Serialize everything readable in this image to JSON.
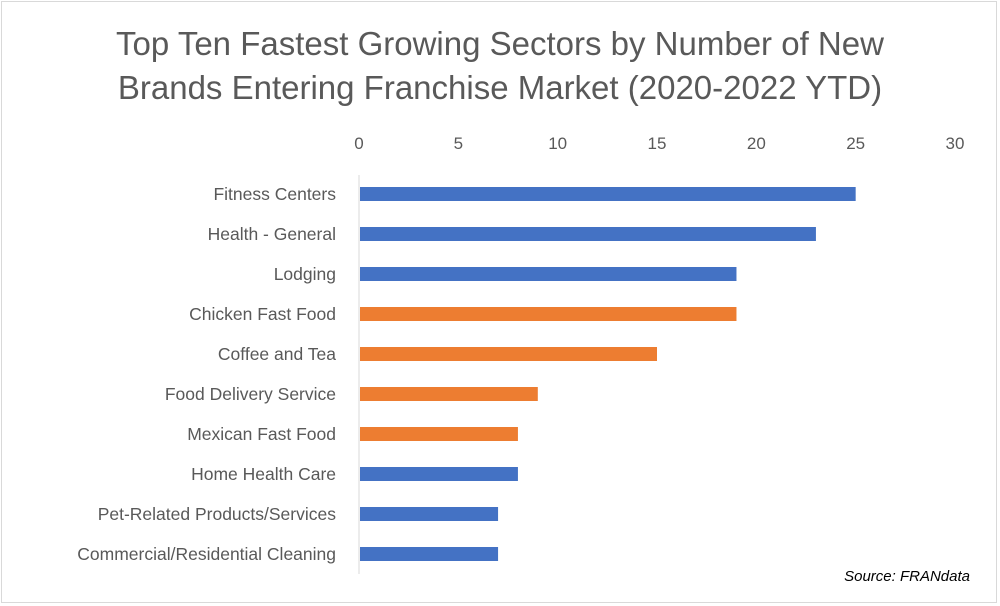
{
  "chart_data": {
    "type": "bar",
    "orientation": "horizontal",
    "title_lines": [
      "Top Ten Fastest Growing Sectors by Number of New",
      "Brands Entering Franchise Market (2020-2022 YTD)"
    ],
    "categories": [
      "Fitness Centers",
      "Health - General",
      "Lodging",
      "Chicken Fast Food",
      "Coffee and Tea",
      "Food Delivery Service",
      "Mexican Fast Food",
      "Home Health Care",
      "Pet-Related Products/Services",
      "Commercial/Residential Cleaning"
    ],
    "values": [
      25,
      23,
      19,
      19,
      15,
      9,
      8,
      8,
      7,
      7
    ],
    "bar_colors": [
      "#4472c4",
      "#4472c4",
      "#4472c4",
      "#ed7d31",
      "#ed7d31",
      "#ed7d31",
      "#ed7d31",
      "#4472c4",
      "#4472c4",
      "#4472c4"
    ],
    "xlim": [
      0,
      30
    ],
    "xticks": [
      0,
      5,
      10,
      15,
      20,
      25,
      30
    ],
    "x_axis_position": "top",
    "grid": false,
    "source": "Source: FRANdata"
  },
  "colors": {
    "blue": "#4472c4",
    "orange": "#ed7d31",
    "text": "#595959",
    "axis": "#d9d9d9"
  }
}
